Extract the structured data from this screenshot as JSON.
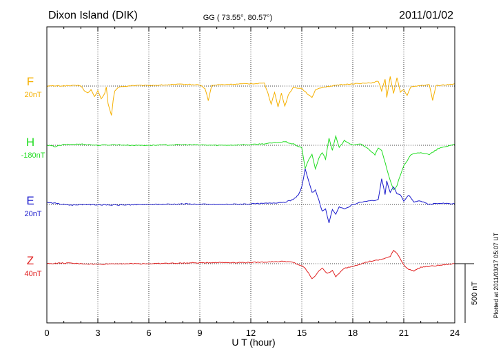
{
  "header": {
    "station": "Dixon Island (DIK)",
    "coords": "GG ( 73.55°,  80.57°)",
    "date": "2011/01/02"
  },
  "footer": {
    "plotted": "Plotted at 2011/03/17 05:07 UT"
  },
  "scale_bar": {
    "label": "500 nT",
    "value_nT": 500
  },
  "chart_data": {
    "type": "line",
    "xlabel": "U T (hour)",
    "xlim": [
      0,
      24
    ],
    "x_ticks": [
      0,
      3,
      6,
      9,
      12,
      15,
      18,
      21,
      24
    ],
    "x_tick_labels": [
      "0",
      "3",
      "6",
      "9",
      "12",
      "15",
      "18",
      "21",
      "24"
    ],
    "grid": "dotted vertical at every 3 hours; dotted baseline per component",
    "y_units": "nT",
    "series": [
      {
        "name": "F",
        "baseline_label": "20nT",
        "baseline_nT": 20,
        "color": "#f5b000",
        "points": [
          [
            0,
            0
          ],
          [
            1,
            2
          ],
          [
            2,
            5
          ],
          [
            2.2,
            -40
          ],
          [
            2.4,
            -60
          ],
          [
            2.6,
            -30
          ],
          [
            2.8,
            -90
          ],
          [
            3,
            -40
          ],
          [
            3.2,
            -110
          ],
          [
            3.4,
            -60
          ],
          [
            3.5,
            -10
          ],
          [
            3.6,
            -150
          ],
          [
            3.8,
            -250
          ],
          [
            3.9,
            -120
          ],
          [
            4,
            -40
          ],
          [
            4.2,
            -10
          ],
          [
            5,
            5
          ],
          [
            6,
            5
          ],
          [
            7,
            10
          ],
          [
            8,
            15
          ],
          [
            9,
            10
          ],
          [
            9.3,
            -20
          ],
          [
            9.5,
            -120
          ],
          [
            9.7,
            5
          ],
          [
            10,
            10
          ],
          [
            11,
            15
          ],
          [
            12,
            20
          ],
          [
            12.8,
            25
          ],
          [
            13,
            -60
          ],
          [
            13.2,
            -150
          ],
          [
            13.4,
            -50
          ],
          [
            13.6,
            -180
          ],
          [
            13.8,
            -60
          ],
          [
            14,
            -170
          ],
          [
            14.2,
            -80
          ],
          [
            14.5,
            -10
          ],
          [
            15,
            -20
          ],
          [
            15.3,
            -60
          ],
          [
            15.6,
            -100
          ],
          [
            15.8,
            -30
          ],
          [
            16.2,
            -10
          ],
          [
            17,
            5
          ],
          [
            18,
            20
          ],
          [
            19,
            25
          ],
          [
            19.5,
            40
          ],
          [
            19.7,
            -40
          ],
          [
            19.9,
            60
          ],
          [
            20,
            -100
          ],
          [
            20.2,
            80
          ],
          [
            20.4,
            -60
          ],
          [
            20.6,
            70
          ],
          [
            20.8,
            -50
          ],
          [
            21,
            -30
          ],
          [
            21.2,
            -80
          ],
          [
            21.4,
            -10
          ],
          [
            22,
            5
          ],
          [
            22.5,
            10
          ],
          [
            22.7,
            -120
          ],
          [
            22.9,
            5
          ],
          [
            23.5,
            10
          ],
          [
            24,
            20
          ]
        ]
      },
      {
        "name": "H",
        "baseline_label": "-180nT",
        "baseline_nT": -180,
        "color": "#22dd22",
        "points": [
          [
            0,
            0
          ],
          [
            0.5,
            -10
          ],
          [
            1,
            5
          ],
          [
            2,
            10
          ],
          [
            3,
            0
          ],
          [
            4,
            5
          ],
          [
            5,
            0
          ],
          [
            6,
            0
          ],
          [
            8,
            5
          ],
          [
            10,
            0
          ],
          [
            12,
            5
          ],
          [
            13,
            15
          ],
          [
            14,
            30
          ],
          [
            14.5,
            10
          ],
          [
            15,
            -20
          ],
          [
            15.2,
            -200
          ],
          [
            15.4,
            -120
          ],
          [
            15.6,
            -80
          ],
          [
            15.8,
            -200
          ],
          [
            16,
            -110
          ],
          [
            16.2,
            -60
          ],
          [
            16.4,
            -120
          ],
          [
            16.6,
            60
          ],
          [
            16.8,
            -40
          ],
          [
            17,
            80
          ],
          [
            17.2,
            -20
          ],
          [
            17.5,
            40
          ],
          [
            18,
            0
          ],
          [
            18.5,
            10
          ],
          [
            19,
            -40
          ],
          [
            19.3,
            -80
          ],
          [
            19.5,
            -20
          ],
          [
            19.7,
            -40
          ],
          [
            20,
            -200
          ],
          [
            20.2,
            -300
          ],
          [
            20.4,
            -380
          ],
          [
            20.6,
            -340
          ],
          [
            20.8,
            -250
          ],
          [
            21,
            -170
          ],
          [
            21.2,
            -130
          ],
          [
            21.4,
            -80
          ],
          [
            22,
            -60
          ],
          [
            22.5,
            -80
          ],
          [
            23,
            -30
          ],
          [
            24,
            10
          ]
        ]
      },
      {
        "name": "E",
        "baseline_label": "20nT",
        "baseline_nT": 20,
        "color": "#1a1acc",
        "points": [
          [
            0,
            20
          ],
          [
            0.5,
            10
          ],
          [
            1,
            0
          ],
          [
            1.5,
            -5
          ],
          [
            2,
            0
          ],
          [
            4,
            -5
          ],
          [
            6,
            0
          ],
          [
            8,
            5
          ],
          [
            10,
            0
          ],
          [
            12,
            5
          ],
          [
            13,
            10
          ],
          [
            14,
            20
          ],
          [
            14.5,
            40
          ],
          [
            14.8,
            80
          ],
          [
            15,
            150
          ],
          [
            15.2,
            300
          ],
          [
            15.4,
            200
          ],
          [
            15.6,
            100
          ],
          [
            15.8,
            120
          ],
          [
            16,
            40
          ],
          [
            16.2,
            -60
          ],
          [
            16.4,
            -40
          ],
          [
            16.6,
            -160
          ],
          [
            16.8,
            -40
          ],
          [
            17,
            -80
          ],
          [
            17.2,
            -20
          ],
          [
            17.5,
            -40
          ],
          [
            18,
            0
          ],
          [
            18.5,
            20
          ],
          [
            19,
            30
          ],
          [
            19.5,
            40
          ],
          [
            19.7,
            220
          ],
          [
            19.9,
            80
          ],
          [
            20,
            200
          ],
          [
            20.2,
            100
          ],
          [
            20.4,
            150
          ],
          [
            20.6,
            90
          ],
          [
            20.8,
            80
          ],
          [
            21,
            30
          ],
          [
            21.3,
            80
          ],
          [
            21.6,
            20
          ],
          [
            22,
            30
          ],
          [
            22.5,
            0
          ],
          [
            23,
            10
          ],
          [
            24,
            5
          ]
        ]
      },
      {
        "name": "Z",
        "baseline_label": "40nT",
        "baseline_nT": 40,
        "color": "#e02020",
        "points": [
          [
            0,
            0
          ],
          [
            1,
            5
          ],
          [
            2,
            0
          ],
          [
            3,
            -5
          ],
          [
            4,
            0
          ],
          [
            5,
            0
          ],
          [
            6,
            0
          ],
          [
            8,
            5
          ],
          [
            10,
            10
          ],
          [
            12,
            10
          ],
          [
            13,
            15
          ],
          [
            14,
            20
          ],
          [
            14.5,
            10
          ],
          [
            15,
            -20
          ],
          [
            15.2,
            -40
          ],
          [
            15.4,
            -80
          ],
          [
            15.6,
            -130
          ],
          [
            15.8,
            -100
          ],
          [
            16,
            -60
          ],
          [
            16.2,
            -40
          ],
          [
            16.5,
            -80
          ],
          [
            16.8,
            -60
          ],
          [
            17,
            -110
          ],
          [
            17.2,
            -80
          ],
          [
            17.5,
            -40
          ],
          [
            18,
            -20
          ],
          [
            19,
            20
          ],
          [
            19.5,
            30
          ],
          [
            20,
            50
          ],
          [
            20.2,
            60
          ],
          [
            20.4,
            110
          ],
          [
            20.6,
            90
          ],
          [
            20.8,
            40
          ],
          [
            21,
            -10
          ],
          [
            21.3,
            -50
          ],
          [
            21.6,
            -60
          ],
          [
            22,
            -30
          ],
          [
            23,
            -15
          ],
          [
            24,
            0
          ]
        ]
      }
    ]
  }
}
